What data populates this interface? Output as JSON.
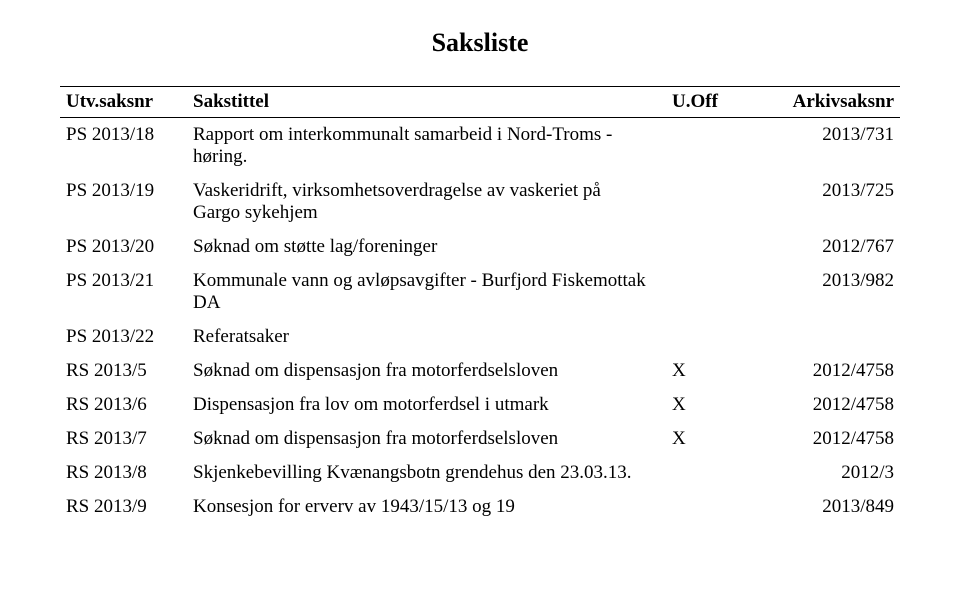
{
  "document": {
    "title": "Saksliste",
    "type": "table",
    "background_color": "#ffffff",
    "text_color": "#000000",
    "font_family": "Times New Roman",
    "title_fontsize": 26,
    "body_fontsize": 19,
    "rule_color": "#000000",
    "columns": [
      {
        "key": "saksnr",
        "label": "Utv.saksnr",
        "align": "left"
      },
      {
        "key": "tittel",
        "label": "Sakstittel",
        "align": "left"
      },
      {
        "key": "uoff",
        "label": "U.Off",
        "align": "left"
      },
      {
        "key": "arkiv",
        "label": "Arkivsaksnr",
        "align": "right"
      }
    ],
    "rows": [
      {
        "saksnr": "PS 2013/18",
        "tittel": "Rapport om interkommunalt samarbeid i Nord-Troms - høring.",
        "uoff": "",
        "arkiv": "2013/731"
      },
      {
        "saksnr": "PS 2013/19",
        "tittel": "Vaskeridrift, virksomhetsoverdragelse av vaskeriet på Gargo sykehjem",
        "uoff": "",
        "arkiv": "2013/725"
      },
      {
        "saksnr": "PS 2013/20",
        "tittel": "Søknad om støtte lag/foreninger",
        "uoff": "",
        "arkiv": "2012/767"
      },
      {
        "saksnr": "PS 2013/21",
        "tittel": "Kommunale vann og avløpsavgifter - Burfjord Fiskemottak DA",
        "uoff": "",
        "arkiv": "2013/982"
      },
      {
        "saksnr": "PS 2013/22",
        "tittel": "Referatsaker",
        "uoff": "",
        "arkiv": ""
      },
      {
        "saksnr": "RS 2013/5",
        "tittel": "Søknad om dispensasjon fra motorferdselsloven",
        "uoff": "X",
        "arkiv": "2012/4758"
      },
      {
        "saksnr": "RS 2013/6",
        "tittel": "Dispensasjon fra lov om motorferdsel i utmark",
        "uoff": "X",
        "arkiv": "2012/4758"
      },
      {
        "saksnr": "RS 2013/7",
        "tittel": "Søknad om dispensasjon fra motorferdselsloven",
        "uoff": "X",
        "arkiv": "2012/4758"
      },
      {
        "saksnr": "RS 2013/8",
        "tittel": "Skjenkebevilling Kvænangsbotn grendehus den 23.03.13.",
        "uoff": "",
        "arkiv": "2012/3"
      },
      {
        "saksnr": "RS 2013/9",
        "tittel": "Konsesjon for erverv av 1943/15/13 og 19",
        "uoff": "",
        "arkiv": "2013/849"
      }
    ]
  }
}
